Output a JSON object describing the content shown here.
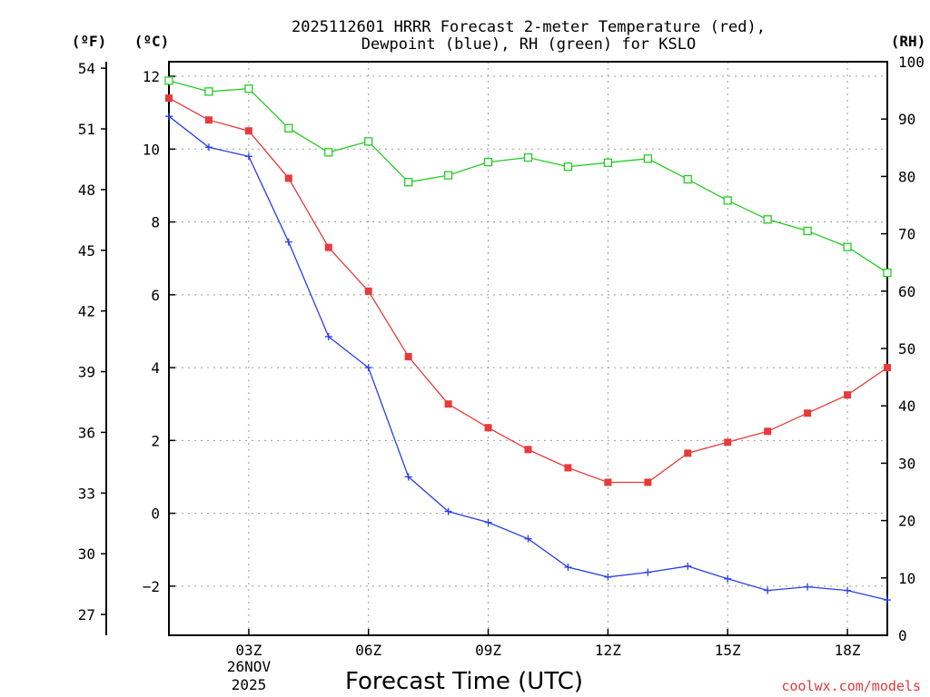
{
  "chart_data": {
    "type": "line",
    "title_line1": "2025112601 HRRR Forecast 2-meter Temperature (red),",
    "title_line2": "Dewpoint (blue), RH (green) for KSLO",
    "xlabel": "Forecast Time (UTC)",
    "credit": "coolwx.com/models",
    "units": {
      "fahrenheit": "(ºF)",
      "celsius": "(ºC)",
      "rh": "(RH)"
    },
    "x": [
      1,
      2,
      3,
      4,
      5,
      6,
      7,
      8,
      9,
      10,
      11,
      12,
      13,
      14,
      15,
      16,
      17,
      18,
      19
    ],
    "xlim": [
      1,
      19
    ],
    "x_ticks": [
      {
        "x": 3,
        "label": "03Z"
      },
      {
        "x": 6,
        "label": "06Z"
      },
      {
        "x": 9,
        "label": "09Z"
      },
      {
        "x": 12,
        "label": "12Z"
      },
      {
        "x": 15,
        "label": "15Z"
      },
      {
        "x": 18,
        "label": "18Z"
      }
    ],
    "date_label_line1": "26NOV",
    "date_label_line2": "2025",
    "celsius_axis": {
      "range": [
        -3.35,
        12.4
      ],
      "ticks": [
        -2,
        0,
        2,
        4,
        6,
        8,
        10,
        12
      ],
      "tick_labels": [
        "−2",
        "0",
        "2",
        "4",
        "6",
        "8",
        "10",
        "12"
      ]
    },
    "fahrenheit_axis": {
      "range": [
        25.97,
        54.32
      ],
      "ticks": [
        27,
        30,
        33,
        36,
        39,
        42,
        45,
        48,
        51,
        54
      ],
      "tick_labels": [
        "27",
        "30",
        "33",
        "36",
        "39",
        "42",
        "45",
        "48",
        "51",
        "54"
      ]
    },
    "rh_axis": {
      "range": [
        0,
        100
      ],
      "ticks": [
        0,
        10,
        20,
        30,
        40,
        50,
        60,
        70,
        80,
        90,
        100
      ],
      "tick_labels": [
        "0",
        "10",
        "20",
        "30",
        "40",
        "50",
        "60",
        "70",
        "80",
        "90",
        "100"
      ]
    },
    "series": [
      {
        "name": "Temperature (°C)",
        "color": "#e83a3a",
        "marker": "filled-square",
        "values": [
          11.4,
          10.8,
          10.5,
          9.2,
          7.3,
          6.1,
          4.3,
          3.0,
          2.35,
          1.75,
          1.25,
          0.85,
          0.85,
          1.65,
          1.95,
          2.25,
          2.75,
          3.25,
          4.0
        ]
      },
      {
        "name": "Dewpoint (°C)",
        "color": "#2a3ee8",
        "marker": "plus",
        "values": [
          10.9,
          10.05,
          9.8,
          7.45,
          4.85,
          4.0,
          1.0,
          0.05,
          -0.25,
          -0.7,
          -1.48,
          -1.75,
          -1.62,
          -1.45,
          -1.8,
          -2.12,
          -2.02,
          -2.12,
          -2.38
        ]
      },
      {
        "name": "Relative Humidity (%)",
        "color": "#22cc22",
        "marker": "open-square",
        "values": [
          96.7,
          94.8,
          95.3,
          88.4,
          84.2,
          86.1,
          79.0,
          80.2,
          82.5,
          83.3,
          81.7,
          82.4,
          83.1,
          79.5,
          75.8,
          72.5,
          70.5,
          67.7,
          63.2
        ]
      }
    ]
  }
}
